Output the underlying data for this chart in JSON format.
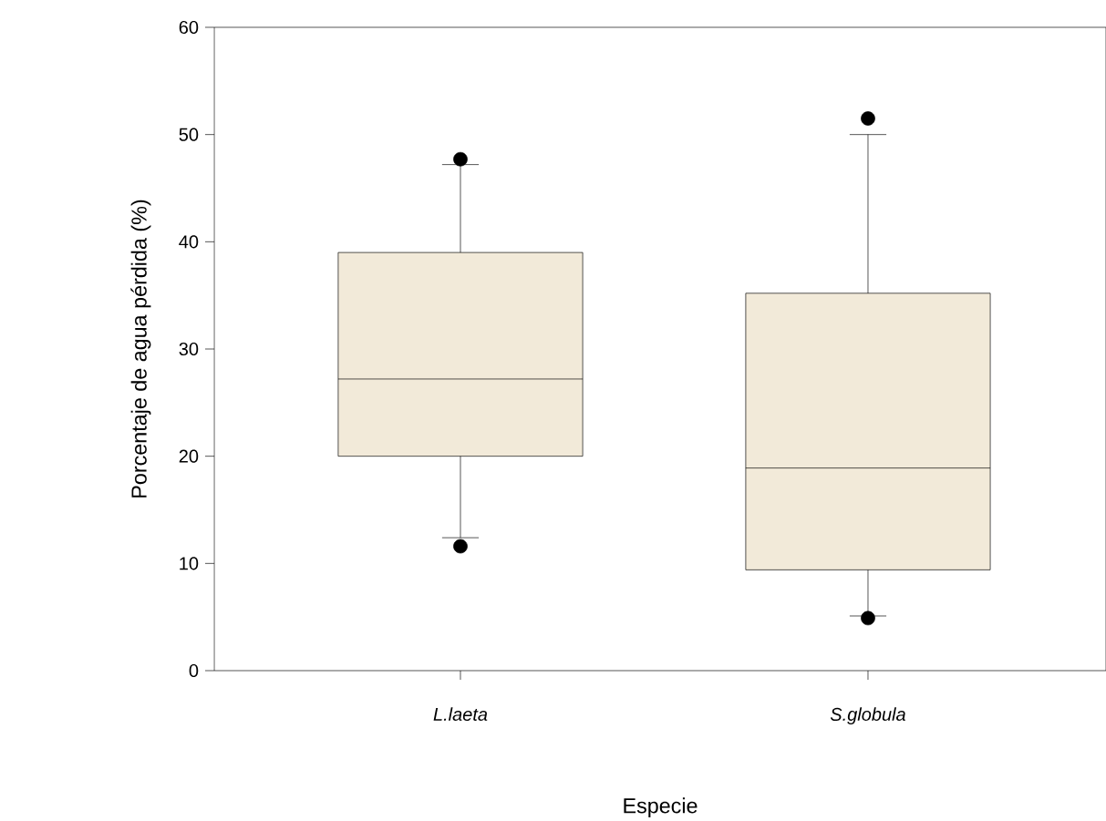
{
  "chart_data": {
    "type": "box",
    "xlabel": "Especie",
    "ylabel": "Porcentaje de agua pérdida (%)",
    "categories": [
      "L.laeta",
      "S.globula"
    ],
    "color": "#f2ead9",
    "boxes": [
      {
        "low": 12.4,
        "q1": 20,
        "median": 27.2,
        "q3": 39,
        "high": 47.2,
        "outliers": [
          47.7,
          11.6
        ]
      },
      {
        "low": 5.1,
        "q1": 9.4,
        "median": 18.9,
        "q3": 35.2,
        "high": 50,
        "outliers": [
          51.5,
          4.9
        ]
      }
    ],
    "ylim": [
      0,
      60
    ],
    "yticks": [
      0,
      10,
      20,
      30,
      40,
      50,
      60
    ],
    "grid": false
  }
}
